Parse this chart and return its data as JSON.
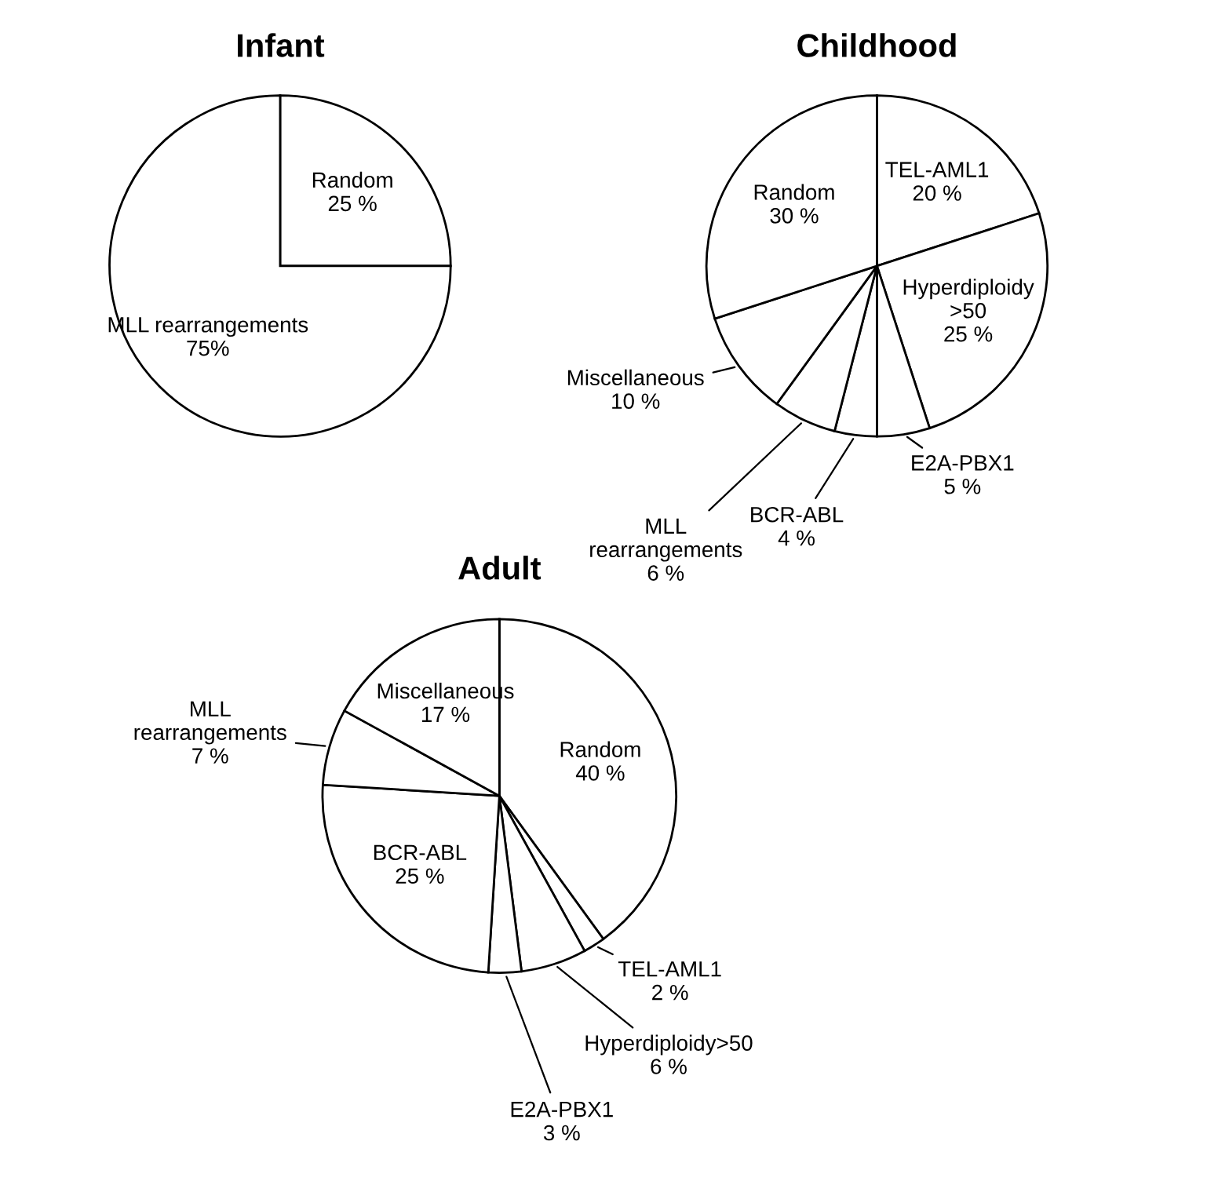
{
  "chart_data": [
    {
      "type": "pie",
      "title": "Infant",
      "categories": [
        "Random",
        "MLL rearrangements"
      ],
      "values": [
        25,
        75
      ],
      "value_labels": [
        "25 %",
        "75%"
      ],
      "colors": [
        "#ffffff",
        "#ffffff"
      ]
    },
    {
      "type": "pie",
      "title": "Childhood",
      "categories": [
        "TEL-AML1",
        "Hyperdiploidy\n>50",
        "E2A-PBX1",
        "BCR-ABL",
        "MLL\nrearrangements",
        "Miscellaneous",
        "Random"
      ],
      "values": [
        20,
        25,
        5,
        4,
        6,
        10,
        30
      ],
      "value_labels": [
        "20 %",
        "25 %",
        "5 %",
        "4 %",
        "6 %",
        "10 %",
        "30 %"
      ],
      "colors": [
        "#ffffff",
        "#ffffff",
        "#ffffff",
        "#ffffff",
        "#ffffff",
        "#ffffff",
        "#ffffff"
      ]
    },
    {
      "type": "pie",
      "title": "Adult",
      "categories": [
        "Random",
        "TEL-AML1",
        "Hyperdiploidy>50",
        "E2A-PBX1",
        "BCR-ABL",
        "MLL\nrearrangements",
        "Miscellaneous"
      ],
      "values": [
        40,
        2,
        6,
        3,
        25,
        7,
        17
      ],
      "value_labels": [
        "40 %",
        "2 %",
        "6 %",
        "3 %",
        "25 %",
        "7 %",
        "17 %"
      ],
      "colors": [
        "#ffffff",
        "#ffffff",
        "#ffffff",
        "#ffffff",
        "#ffffff",
        "#ffffff",
        "#ffffff"
      ]
    }
  ]
}
